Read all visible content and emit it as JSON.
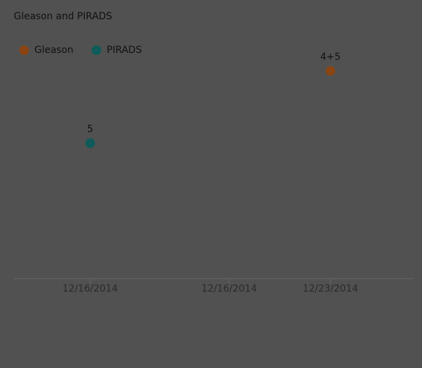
{
  "chart_data": {
    "type": "scatter",
    "title": "Gleason and PIRADS",
    "categories": [
      "12/16/2014",
      "12/16/2014",
      "12/23/2014"
    ],
    "series": [
      {
        "name": "Gleason",
        "color": "#8a4513",
        "values": [
          null,
          null,
          9
        ],
        "value_labels": [
          null,
          null,
          "4+5"
        ]
      },
      {
        "name": "PIRADS",
        "color": "#0e5b59",
        "values": [
          5,
          null,
          null
        ]
      }
    ],
    "ylim": [
      -2.5,
      11
    ],
    "legend": "top-left"
  }
}
